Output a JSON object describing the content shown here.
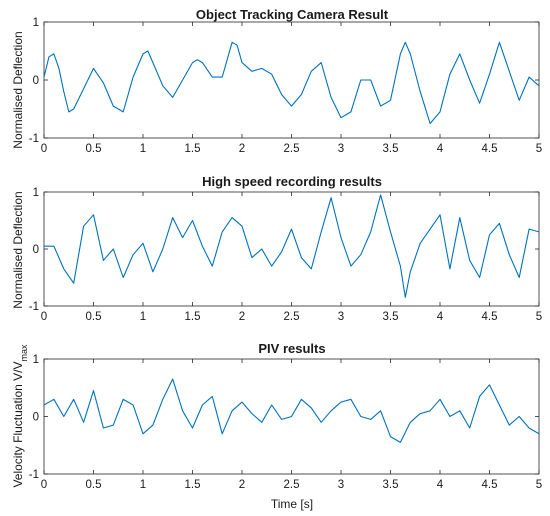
{
  "chart_data": [
    {
      "type": "line",
      "title": "Object Tracking Camera Result",
      "xlabel": "",
      "ylabel": "Normalised Deflection",
      "xlim": [
        0,
        5
      ],
      "ylim": [
        -1,
        1
      ],
      "xticks": [
        "0",
        "0.5",
        "1",
        "1.5",
        "2",
        "2.5",
        "3",
        "3.5",
        "4",
        "4.5",
        "5"
      ],
      "yticks": [
        "-1",
        "0",
        "1"
      ],
      "color": "#0072BD",
      "grid": false,
      "series": [
        {
          "x": [
            0,
            0.05,
            0.1,
            0.15,
            0.2,
            0.25,
            0.3,
            0.4,
            0.5,
            0.6,
            0.7,
            0.8,
            0.9,
            1.0,
            1.05,
            1.1,
            1.2,
            1.3,
            1.4,
            1.5,
            1.55,
            1.6,
            1.7,
            1.8,
            1.9,
            1.95,
            2.0,
            2.1,
            2.2,
            2.3,
            2.4,
            2.5,
            2.6,
            2.7,
            2.8,
            2.9,
            3.0,
            3.1,
            3.2,
            3.3,
            3.4,
            3.5,
            3.6,
            3.65,
            3.7,
            3.8,
            3.9,
            4.0,
            4.1,
            4.2,
            4.3,
            4.4,
            4.5,
            4.6,
            4.7,
            4.8,
            4.9,
            5.0
          ],
          "y": [
            0.05,
            0.4,
            0.45,
            0.2,
            -0.2,
            -0.55,
            -0.5,
            -0.15,
            0.2,
            -0.05,
            -0.45,
            -0.55,
            0.05,
            0.45,
            0.5,
            0.3,
            -0.1,
            -0.3,
            0.0,
            0.3,
            0.35,
            0.3,
            0.05,
            0.05,
            0.65,
            0.6,
            0.3,
            0.15,
            0.2,
            0.1,
            -0.25,
            -0.45,
            -0.25,
            0.15,
            0.3,
            -0.3,
            -0.65,
            -0.55,
            0.0,
            0.0,
            -0.45,
            -0.35,
            0.45,
            0.65,
            0.45,
            -0.2,
            -0.75,
            -0.55,
            0.1,
            0.45,
            0.0,
            -0.4,
            0.1,
            0.65,
            0.15,
            -0.35,
            0.05,
            -0.1
          ]
        }
      ]
    },
    {
      "type": "line",
      "title": "High speed recording results",
      "xlabel": "",
      "ylabel": "Normalised Deflection",
      "xlim": [
        0,
        5
      ],
      "ylim": [
        -1,
        1
      ],
      "xticks": [
        "0",
        "0.5",
        "1",
        "1.5",
        "2",
        "2.5",
        "3",
        "3.5",
        "4",
        "4.5",
        "5"
      ],
      "yticks": [
        "-1",
        "0",
        "1"
      ],
      "color": "#0072BD",
      "grid": false,
      "series": [
        {
          "x": [
            0,
            0.1,
            0.2,
            0.3,
            0.4,
            0.5,
            0.6,
            0.7,
            0.8,
            0.9,
            1.0,
            1.1,
            1.2,
            1.3,
            1.4,
            1.5,
            1.6,
            1.7,
            1.8,
            1.9,
            2.0,
            2.1,
            2.2,
            2.3,
            2.4,
            2.5,
            2.6,
            2.7,
            2.8,
            2.9,
            3.0,
            3.1,
            3.2,
            3.3,
            3.4,
            3.5,
            3.6,
            3.65,
            3.7,
            3.8,
            3.9,
            4.0,
            4.1,
            4.2,
            4.3,
            4.4,
            4.5,
            4.6,
            4.7,
            4.8,
            4.9,
            5.0
          ],
          "y": [
            0.05,
            0.05,
            -0.35,
            -0.6,
            0.4,
            0.6,
            -0.2,
            0.0,
            -0.5,
            -0.1,
            0.1,
            -0.4,
            0.0,
            0.55,
            0.2,
            0.5,
            0.05,
            -0.3,
            0.3,
            0.55,
            0.4,
            -0.15,
            0.0,
            -0.3,
            -0.05,
            0.35,
            -0.15,
            -0.35,
            0.3,
            0.9,
            0.2,
            -0.3,
            -0.1,
            0.3,
            0.95,
            0.3,
            -0.3,
            -0.85,
            -0.4,
            0.1,
            0.35,
            0.6,
            -0.35,
            0.55,
            -0.2,
            -0.5,
            0.25,
            0.45,
            -0.1,
            -0.5,
            0.35,
            0.3
          ]
        }
      ]
    },
    {
      "type": "line",
      "title": "PIV results",
      "xlabel": "Time [s]",
      "ylabel": "Velocity Fluctuation V/V",
      "ylabel_sub": "max",
      "xlim": [
        0,
        5
      ],
      "ylim": [
        -1,
        1
      ],
      "xticks": [
        "0",
        "0.5",
        "1",
        "1.5",
        "2",
        "2.5",
        "3",
        "3.5",
        "4",
        "4.5",
        "5"
      ],
      "yticks": [
        "-1",
        "0",
        "1"
      ],
      "color": "#0072BD",
      "grid": false,
      "series": [
        {
          "x": [
            0,
            0.1,
            0.2,
            0.3,
            0.4,
            0.5,
            0.6,
            0.7,
            0.8,
            0.9,
            1.0,
            1.1,
            1.2,
            1.3,
            1.4,
            1.5,
            1.6,
            1.7,
            1.8,
            1.9,
            2.0,
            2.1,
            2.2,
            2.3,
            2.4,
            2.5,
            2.6,
            2.7,
            2.8,
            2.9,
            3.0,
            3.1,
            3.2,
            3.3,
            3.4,
            3.5,
            3.6,
            3.7,
            3.8,
            3.9,
            4.0,
            4.1,
            4.2,
            4.3,
            4.4,
            4.5,
            4.6,
            4.7,
            4.8,
            4.9,
            5.0
          ],
          "y": [
            0.2,
            0.3,
            0.0,
            0.3,
            -0.1,
            0.45,
            -0.2,
            -0.15,
            0.3,
            0.2,
            -0.3,
            -0.15,
            0.3,
            0.65,
            0.1,
            -0.2,
            0.2,
            0.35,
            -0.3,
            0.1,
            0.25,
            0.05,
            -0.1,
            0.2,
            -0.05,
            0.0,
            0.3,
            0.15,
            -0.1,
            0.1,
            0.25,
            0.3,
            0.0,
            -0.05,
            0.1,
            -0.35,
            -0.45,
            -0.1,
            0.05,
            0.1,
            0.3,
            0.0,
            0.1,
            -0.2,
            0.35,
            0.55,
            0.2,
            -0.15,
            0.0,
            -0.2,
            -0.3
          ]
        }
      ]
    }
  ]
}
